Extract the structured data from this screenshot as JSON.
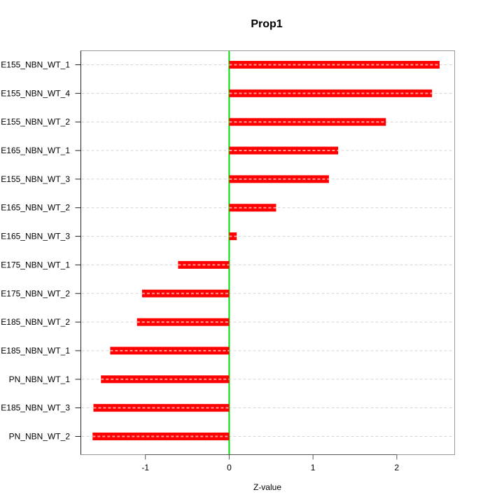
{
  "chart_data": {
    "type": "bar",
    "orientation": "horizontal",
    "title": "Prop1",
    "xlabel": "Z-value",
    "ylabel": "",
    "categories": [
      "E155_NBN_WT_1",
      "E155_NBN_WT_4",
      "E155_NBN_WT_2",
      "E165_NBN_WT_1",
      "E155_NBN_WT_3",
      "E165_NBN_WT_2",
      "E165_NBN_WT_3",
      "E175_NBN_WT_1",
      "E175_NBN_WT_2",
      "E185_NBN_WT_2",
      "E185_NBN_WT_1",
      "PN_NBN_WT_1",
      "E185_NBN_WT_3",
      "PN_NBN_WT_2"
    ],
    "values": [
      2.51,
      2.42,
      1.87,
      1.3,
      1.19,
      0.56,
      0.09,
      -0.61,
      -1.04,
      -1.1,
      -1.42,
      -1.53,
      -1.62,
      -1.63
    ],
    "x_ticks": [
      -1,
      0,
      1,
      2
    ],
    "xlim": [
      -1.77,
      2.69
    ],
    "grid": true,
    "grid_style": "dashed",
    "zero_line": 0,
    "legend": "none",
    "colors": {
      "bar": "#ff0000",
      "bar_stripe": "#ff9999",
      "zero_line": "#00dd00",
      "grid": "#d4d4d4",
      "box": "#999999",
      "y_axis": "#222222",
      "x_axis": "#555555",
      "text": "#000000",
      "background": "#ffffff"
    }
  }
}
